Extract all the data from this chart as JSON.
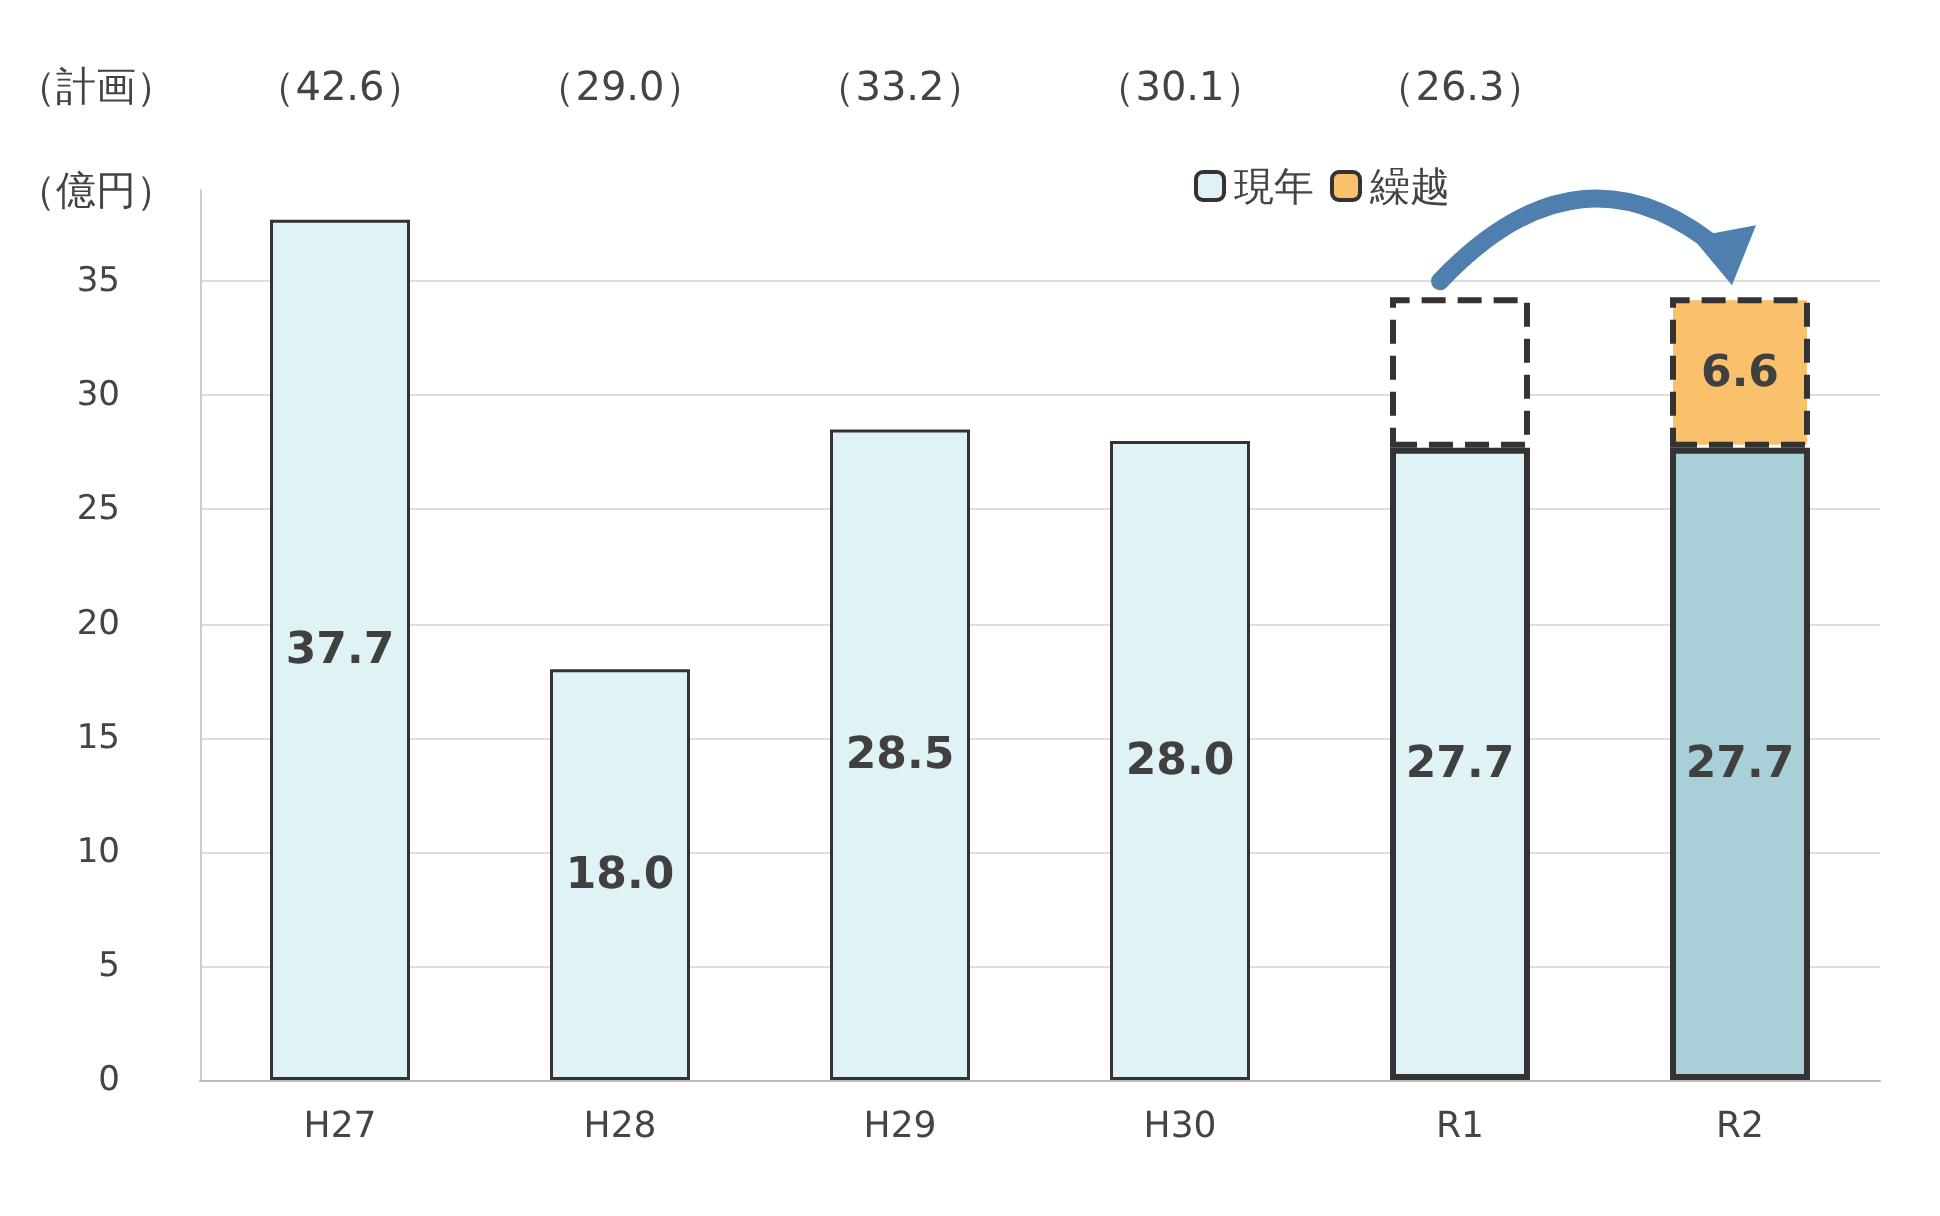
{
  "chart_data": {
    "type": "bar",
    "ylabel": "（億円）",
    "categories": [
      "H27",
      "H28",
      "H29",
      "H30",
      "R1",
      "R2"
    ],
    "stacked": true,
    "series": [
      {
        "name": "現年",
        "color": "#dff3f7",
        "colors": [
          "#dff3f7",
          "#dff3f7",
          "#dff3f7",
          "#dff3f7",
          "#dff3f7",
          "#a9cfd8"
        ],
        "values": [
          37.7,
          18.0,
          28.5,
          28.0,
          27.7,
          27.7
        ],
        "value_labels": [
          "37.7",
          "18.0",
          "28.5",
          "28.0",
          "27.7",
          "27.7"
        ]
      },
      {
        "name": "繰越",
        "color": "#f9c16b",
        "colors": [
          null,
          null,
          null,
          null,
          "#ffffff",
          "#f9c16b"
        ],
        "values": [
          null,
          null,
          null,
          null,
          6.6,
          6.6
        ],
        "value_labels": [
          null,
          null,
          null,
          null,
          null,
          "6.6"
        ]
      }
    ],
    "ylim": [
      0,
      39
    ],
    "yticks": [
      0,
      5,
      10,
      15,
      20,
      25,
      30,
      35
    ],
    "grid": "y",
    "legend": "top right",
    "annotations": [
      "（計画）",
      "（42.6）",
      "（29.0）",
      "（33.2）",
      "（30.1）",
      "（26.3）"
    ]
  }
}
